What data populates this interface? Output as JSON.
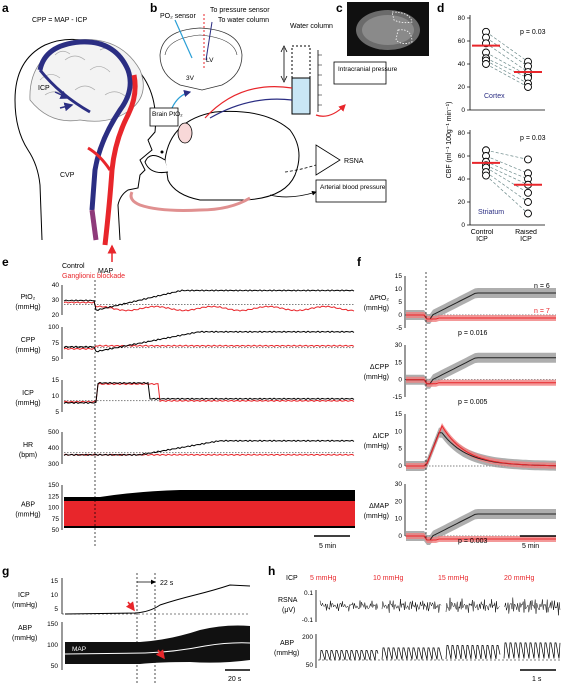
{
  "panels": {
    "a": {
      "letter": "a",
      "equation": "CPP = MAP - ICP",
      "labels": {
        "icp": "ICP",
        "cvp": "CVP",
        "map": "MAP"
      }
    },
    "b": {
      "letter": "b",
      "labels": {
        "po2_sensor": "PO₂ sensor",
        "to_pressure_sensor": "To pressure sensor",
        "to_water_column": "To water column",
        "lv": "LV",
        "v3": "3V",
        "water_column": "Water column",
        "brain_pto2": "Brain PtO₂",
        "intracranial_pressure": "Intracranial pressure",
        "rsna": "RSNA",
        "arterial_blood_pressure": "Arterial blood pressure"
      }
    },
    "c": {
      "letter": "c"
    },
    "d": {
      "letter": "d",
      "ylabel": "CBF (ml⁻¹ 100g⁻¹ min⁻¹)",
      "xticks": [
        "Control ICP",
        "Raised ICP"
      ],
      "cortex": {
        "name": "Cortex",
        "pvalue": "p = 0.03",
        "yticks": [
          "80",
          "60",
          "40",
          "20",
          "0"
        ],
        "ylim": [
          0,
          80
        ],
        "control": [
          68,
          63,
          58,
          50,
          45,
          43,
          40
        ],
        "raised": [
          42,
          38,
          33,
          30,
          28,
          23,
          20
        ],
        "control_mean": 56,
        "raised_mean": 33
      },
      "striatum": {
        "name": "Striatum",
        "pvalue": "p = 0.03",
        "yticks": [
          "80",
          "60",
          "40",
          "20",
          "0"
        ],
        "ylim": [
          0,
          80
        ],
        "control": [
          65,
          60,
          55,
          52,
          50,
          46,
          43
        ],
        "raised": [
          57,
          45,
          40,
          35,
          28,
          20,
          10
        ],
        "control_mean": 54,
        "raised_mean": 35
      }
    },
    "e": {
      "letter": "e",
      "legend": {
        "control": "Control",
        "blockade": "Ganglionic blockade"
      },
      "rows": [
        {
          "label": "PtO₂",
          "unit": "(mmHg)",
          "ticks": [
            "40",
            "30",
            "20"
          ]
        },
        {
          "label": "CPP",
          "unit": "(mmHg)",
          "ticks": [
            "100",
            "75",
            "50"
          ]
        },
        {
          "label": "ICP",
          "unit": "(mmHg)",
          "ticks": [
            "15",
            "10",
            "5"
          ]
        },
        {
          "label": "HR",
          "unit": "(bpm)",
          "ticks": [
            "500",
            "400",
            "300"
          ]
        },
        {
          "label": "ABP",
          "unit": "(mmHg)",
          "ticks": [
            "150",
            "125",
            "100",
            "75",
            "50"
          ]
        }
      ],
      "scalebar": "5 min"
    },
    "f": {
      "letter": "f",
      "rows": [
        {
          "label": "ΔPtO₂",
          "unit": "(mmHg)",
          "ticks": [
            "15",
            "10",
            "5",
            "0",
            "-5"
          ],
          "pvalue": "p = 0.016"
        },
        {
          "label": "ΔCPP",
          "unit": "(mmHg)",
          "ticks": [
            "30",
            "15",
            "0",
            "-15"
          ],
          "pvalue": "p = 0.005"
        },
        {
          "label": "ΔICP",
          "unit": "(mmHg)",
          "ticks": [
            "15",
            "10",
            "5",
            "0"
          ],
          "pvalue": ""
        },
        {
          "label": "ΔMAP",
          "unit": "(mmHg)",
          "ticks": [
            "30",
            "20",
            "10",
            "0"
          ],
          "pvalue": "p = 0.003"
        }
      ],
      "n_control": "n = 6",
      "n_blockade": "n = 7",
      "scalebar": "5 min"
    },
    "g": {
      "letter": "g",
      "icp_label": "ICP",
      "icp_unit": "(mmHg)",
      "icp_ticks": [
        "15",
        "10",
        "5"
      ],
      "abp_label": "ABP",
      "abp_unit": "(mmHg)",
      "abp_ticks": [
        "150",
        "100",
        "50"
      ],
      "interval": "22 s",
      "map_label": "MAP",
      "scalebar": "20 s"
    },
    "h": {
      "letter": "h",
      "icp_label": "ICP",
      "conditions": [
        "5 mmHg",
        "10 mmHg",
        "15 mmHg",
        "20 mmHg"
      ],
      "rsna_label": "RSNA",
      "rsna_unit": "(μV)",
      "rsna_ticks": [
        "0.1",
        "-0.1"
      ],
      "abp_label": "ABP",
      "abp_unit": "(mmHg)",
      "abp_ticks": [
        "200",
        "50"
      ],
      "scalebar": "1 s"
    }
  },
  "colors": {
    "red": "#e8262b",
    "blue": "#2b2e83",
    "control": "#000000",
    "gray": "#808080"
  }
}
